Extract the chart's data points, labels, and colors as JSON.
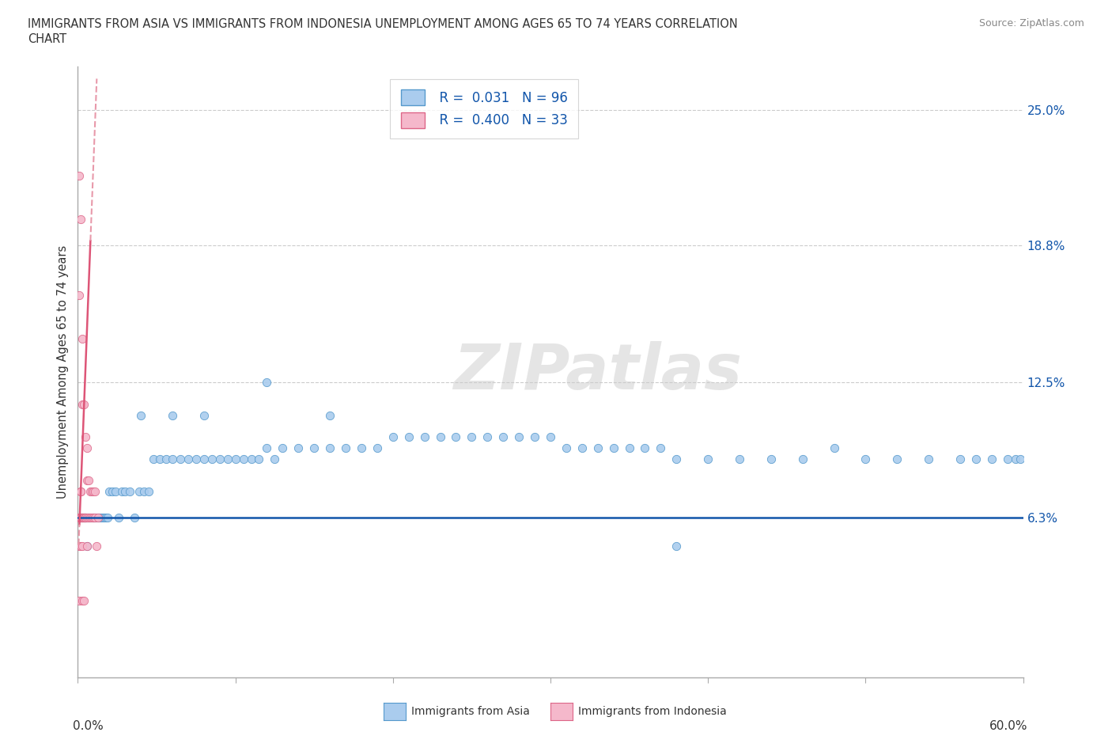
{
  "title_line1": "IMMIGRANTS FROM ASIA VS IMMIGRANTS FROM INDONESIA UNEMPLOYMENT AMONG AGES 65 TO 74 YEARS CORRELATION",
  "title_line2": "CHART",
  "source": "Source: ZipAtlas.com",
  "ylabel": "Unemployment Among Ages 65 to 74 years",
  "right_yticklabels": [
    "6.3%",
    "12.5%",
    "18.8%",
    "25.0%"
  ],
  "right_ytick_vals": [
    0.063,
    0.125,
    0.188,
    0.25
  ],
  "xlim": [
    0.0,
    0.6
  ],
  "ylim": [
    -0.01,
    0.27
  ],
  "plot_ylim": [
    -0.01,
    0.27
  ],
  "watermark": "ZIPatlas",
  "legend_asia_R": "0.031",
  "legend_asia_N": "96",
  "legend_indo_R": "0.400",
  "legend_indo_N": "33",
  "asia_color": "#aaccee",
  "indonesia_color": "#f5b8cb",
  "asia_edge": "#5599cc",
  "indonesia_edge": "#dd6688",
  "trend_asia_color": "#1155aa",
  "trend_indonesia_color": "#dd5577",
  "trend_indonesia_dashed_color": "#e899aa",
  "grid_color": "#cccccc",
  "grid_style": "--",
  "bg_color": "#ffffff",
  "asia_points": {
    "x": [
      0.002,
      0.003,
      0.004,
      0.005,
      0.005,
      0.006,
      0.006,
      0.007,
      0.007,
      0.008,
      0.009,
      0.01,
      0.01,
      0.011,
      0.012,
      0.013,
      0.014,
      0.015,
      0.016,
      0.017,
      0.018,
      0.019,
      0.02,
      0.022,
      0.024,
      0.026,
      0.028,
      0.03,
      0.033,
      0.036,
      0.039,
      0.042,
      0.045,
      0.048,
      0.052,
      0.056,
      0.06,
      0.065,
      0.07,
      0.075,
      0.08,
      0.085,
      0.09,
      0.095,
      0.1,
      0.105,
      0.11,
      0.115,
      0.12,
      0.125,
      0.13,
      0.14,
      0.15,
      0.16,
      0.17,
      0.18,
      0.19,
      0.2,
      0.21,
      0.22,
      0.23,
      0.24,
      0.25,
      0.26,
      0.27,
      0.28,
      0.29,
      0.3,
      0.31,
      0.32,
      0.33,
      0.34,
      0.35,
      0.36,
      0.37,
      0.38,
      0.4,
      0.42,
      0.44,
      0.46,
      0.48,
      0.5,
      0.52,
      0.54,
      0.56,
      0.57,
      0.58,
      0.59,
      0.595,
      0.598,
      0.04,
      0.06,
      0.08,
      0.12,
      0.16,
      0.38
    ],
    "y": [
      0.063,
      0.063,
      0.063,
      0.063,
      0.063,
      0.05,
      0.063,
      0.063,
      0.063,
      0.063,
      0.063,
      0.063,
      0.063,
      0.063,
      0.063,
      0.063,
      0.063,
      0.063,
      0.063,
      0.063,
      0.063,
      0.063,
      0.075,
      0.075,
      0.075,
      0.063,
      0.075,
      0.075,
      0.075,
      0.063,
      0.075,
      0.075,
      0.075,
      0.09,
      0.09,
      0.09,
      0.09,
      0.09,
      0.09,
      0.09,
      0.09,
      0.09,
      0.09,
      0.09,
      0.09,
      0.09,
      0.09,
      0.09,
      0.095,
      0.09,
      0.095,
      0.095,
      0.095,
      0.095,
      0.095,
      0.095,
      0.095,
      0.1,
      0.1,
      0.1,
      0.1,
      0.1,
      0.1,
      0.1,
      0.1,
      0.1,
      0.1,
      0.1,
      0.095,
      0.095,
      0.095,
      0.095,
      0.095,
      0.095,
      0.095,
      0.09,
      0.09,
      0.09,
      0.09,
      0.09,
      0.095,
      0.09,
      0.09,
      0.09,
      0.09,
      0.09,
      0.09,
      0.09,
      0.09,
      0.09,
      0.11,
      0.11,
      0.11,
      0.125,
      0.11,
      0.05
    ]
  },
  "indonesia_points": {
    "x": [
      0.001,
      0.001,
      0.001,
      0.001,
      0.001,
      0.002,
      0.002,
      0.002,
      0.002,
      0.002,
      0.002,
      0.002,
      0.003,
      0.003,
      0.003,
      0.003,
      0.003,
      0.004,
      0.004,
      0.004,
      0.004,
      0.005,
      0.005,
      0.005,
      0.006,
      0.006,
      0.007,
      0.008,
      0.009,
      0.01,
      0.011,
      0.012,
      0.013
    ],
    "y": [
      0.063,
      0.05,
      0.063,
      0.063,
      0.025,
      0.063,
      0.075,
      0.05,
      0.063,
      0.063,
      0.063,
      0.075,
      0.063,
      0.063,
      0.05,
      0.063,
      0.063,
      0.063,
      0.063,
      0.063,
      0.063,
      0.063,
      0.063,
      0.063,
      0.05,
      0.063,
      0.063,
      0.063,
      0.063,
      0.063,
      0.063,
      0.05,
      0.063
    ]
  },
  "indonesia_outliers": {
    "x": [
      0.001,
      0.001,
      0.002,
      0.003,
      0.003,
      0.004,
      0.005,
      0.006,
      0.006,
      0.007,
      0.008,
      0.009,
      0.01,
      0.011,
      0.003,
      0.004
    ],
    "y": [
      0.22,
      0.165,
      0.2,
      0.145,
      0.115,
      0.115,
      0.1,
      0.095,
      0.08,
      0.08,
      0.075,
      0.075,
      0.075,
      0.075,
      0.025,
      0.025
    ]
  }
}
